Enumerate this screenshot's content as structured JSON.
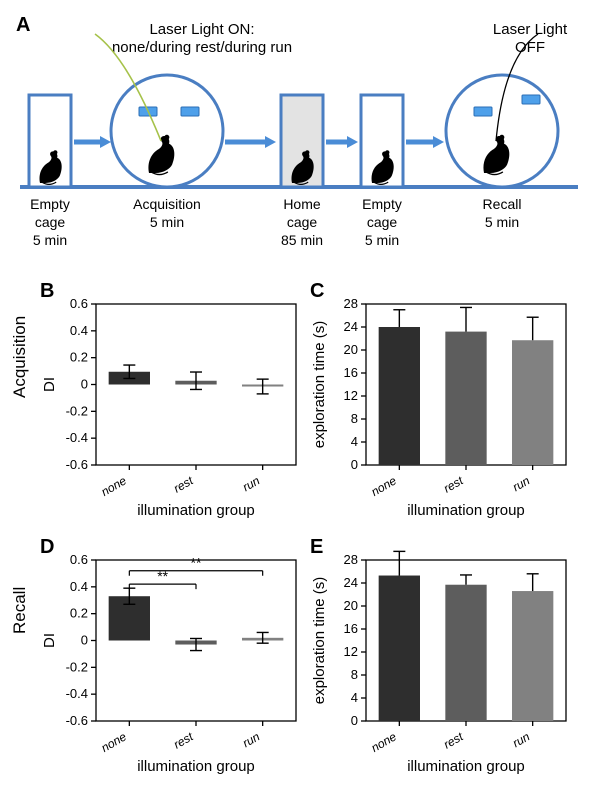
{
  "panelA": {
    "letter": "A",
    "top_labels": {
      "laser_on": "Laser Light ON:",
      "laser_on_sub": "none/during rest/during run",
      "laser_off": "Laser Light",
      "laser_off_sub": "OFF"
    },
    "stages": [
      {
        "line1": "Empty",
        "line2": "cage",
        "line3": "5 min"
      },
      {
        "line1": "Acquisition",
        "line2": "5 min",
        "line3": ""
      },
      {
        "line1": "Home",
        "line2": "cage",
        "line3": "85 min"
      },
      {
        "line1": "Empty",
        "line2": "cage",
        "line3": "5 min"
      },
      {
        "line1": "Recall",
        "line2": "5 min",
        "line3": ""
      }
    ],
    "colors": {
      "line": "#4a7ec2",
      "baseline": "#4a7ec2",
      "object_fill": "#4ea0ea",
      "object_stroke": "#2b6eb5",
      "home_fill": "#e3e3e3",
      "arrow": "#4a8cd6",
      "fiber_green": "#a6c24a"
    }
  },
  "panelB": {
    "letter": "B",
    "row_label": "Acquisition",
    "y_label": "DI",
    "x_label": "illumination group",
    "categories": [
      "none",
      "rest",
      "run"
    ],
    "bars": [
      {
        "value": 0.095,
        "err": 0.05,
        "color": "#2e2e2e"
      },
      {
        "value": 0.028,
        "err": 0.065,
        "color": "#5d5d5d"
      },
      {
        "value": -0.015,
        "err": 0.055,
        "color": "#818181"
      }
    ],
    "y_ticks": [
      -0.6,
      -0.4,
      -0.2,
      0.0,
      0.2,
      0.4,
      0.6
    ],
    "ylim": [
      -0.6,
      0.6
    ],
    "style": {
      "bg": "#ffffff",
      "axis": "#000000",
      "errw": 1.4,
      "bar_gap": 8,
      "fontsize_axis": 15
    }
  },
  "panelC": {
    "letter": "C",
    "y_label": "exploration time (s)",
    "x_label": "illumination group",
    "categories": [
      "none",
      "rest",
      "run"
    ],
    "bars": [
      {
        "value": 24.0,
        "err": 3.0,
        "color": "#2e2e2e"
      },
      {
        "value": 23.2,
        "err": 4.2,
        "color": "#5d5d5d"
      },
      {
        "value": 21.7,
        "err": 4.0,
        "color": "#818181"
      }
    ],
    "y_ticks": [
      0,
      4,
      8,
      12,
      16,
      20,
      24,
      28
    ],
    "ylim": [
      0,
      28
    ],
    "style": {
      "bg": "#ffffff",
      "axis": "#000000",
      "errw": 1.4
    }
  },
  "panelD": {
    "letter": "D",
    "row_label": "Recall",
    "y_label": "DI",
    "x_label": "illumination group",
    "categories": [
      "none",
      "rest",
      "run"
    ],
    "bars": [
      {
        "value": 0.33,
        "err": 0.06,
        "color": "#2e2e2e"
      },
      {
        "value": -0.03,
        "err": 0.045,
        "color": "#5d5d5d"
      },
      {
        "value": 0.02,
        "err": 0.04,
        "color": "#818181"
      }
    ],
    "y_ticks": [
      -0.6,
      -0.4,
      -0.2,
      0.0,
      0.2,
      0.4,
      0.6
    ],
    "ylim": [
      -0.6,
      0.6
    ],
    "significance": [
      {
        "from": 0,
        "to": 1,
        "label": "**",
        "y": 0.42
      },
      {
        "from": 0,
        "to": 2,
        "label": "**",
        "y": 0.52
      }
    ],
    "style": {
      "bg": "#ffffff",
      "axis": "#000000"
    }
  },
  "panelE": {
    "letter": "E",
    "y_label": "exploration time (s)",
    "x_label": "illumination group",
    "categories": [
      "none",
      "rest",
      "run"
    ],
    "bars": [
      {
        "value": 25.3,
        "err": 4.2,
        "color": "#2e2e2e"
      },
      {
        "value": 23.7,
        "err": 1.7,
        "color": "#5d5d5d"
      },
      {
        "value": 22.6,
        "err": 3.0,
        "color": "#818181"
      }
    ],
    "y_ticks": [
      0,
      4,
      8,
      12,
      16,
      20,
      24,
      28
    ],
    "ylim": [
      0,
      28
    ],
    "style": {
      "bg": "#ffffff",
      "axis": "#000000"
    }
  }
}
